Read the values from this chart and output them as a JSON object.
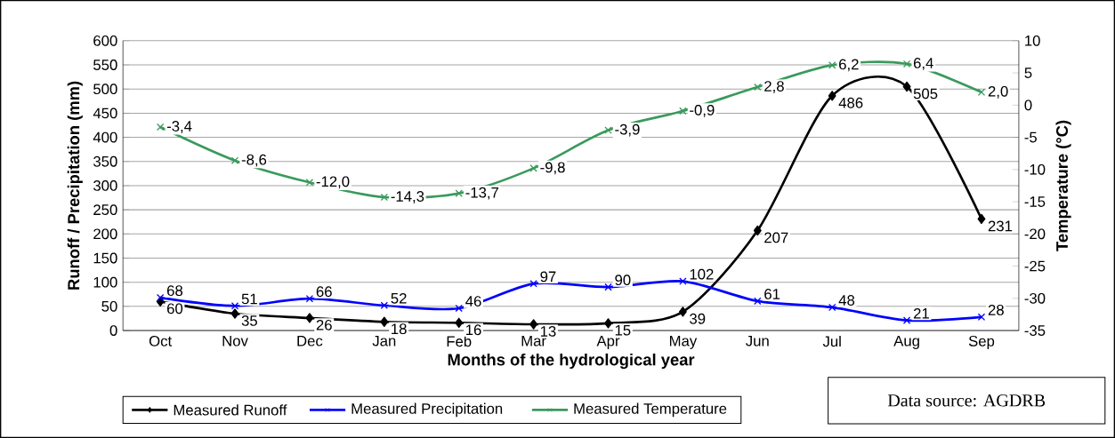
{
  "chart_data": {
    "type": "line",
    "xlabel": "Months of the hydrological year",
    "ylabel": "Runoff / Precipitation (mm)",
    "y2label": "Temperature (°C)",
    "categories": [
      "Oct",
      "Nov",
      "Dec",
      "Jan",
      "Feb",
      "Mar",
      "Apr",
      "May",
      "Jun",
      "Jul",
      "Aug",
      "Sep"
    ],
    "series": [
      {
        "name": "Measured Runoff",
        "color": "#000000",
        "marker": "diamond",
        "values": [
          60,
          35,
          26,
          18,
          16,
          13,
          15,
          39,
          207,
          486,
          505,
          231
        ],
        "value_labels": [
          "60",
          "35",
          "26",
          "18",
          "16",
          "13",
          "15",
          "39",
          "207",
          "486",
          "505",
          "231"
        ]
      },
      {
        "name": "Measured Precipitation",
        "color": "#0000ff",
        "marker": "cross",
        "values": [
          68,
          51,
          66,
          52,
          46,
          97,
          90,
          102,
          61,
          48,
          21,
          28
        ],
        "value_labels": [
          "68",
          "51",
          "66",
          "52",
          "46",
          "97",
          "90",
          "102",
          "61",
          "48",
          "21",
          "28"
        ]
      },
      {
        "name": "Measured Temperature",
        "color": "#3a9a5c",
        "marker": "cross",
        "axis": "y2",
        "values": [
          -3.4,
          -8.6,
          -12.0,
          -14.3,
          -13.7,
          -9.8,
          -3.9,
          -0.9,
          2.8,
          6.2,
          6.4,
          2.0
        ],
        "value_labels": [
          "-3,4",
          "-8,6",
          "-12,0",
          "-14,3",
          "-13,7",
          "-9,8",
          "-3,9",
          "-0,9",
          "2,8",
          "6,2",
          "6,4",
          "2,0"
        ]
      }
    ],
    "ylim": [
      0,
      600
    ],
    "yticks": [
      0,
      50,
      100,
      150,
      200,
      250,
      300,
      350,
      400,
      450,
      500,
      550,
      600
    ],
    "y2lim": [
      -35,
      10
    ],
    "y2ticks": [
      -35,
      -30,
      -25,
      -20,
      -15,
      -10,
      -5,
      0,
      5,
      10
    ],
    "grid": "y",
    "legend": "bottom",
    "line_style": "solid",
    "annotations": [
      "Data source: AGDRB"
    ]
  }
}
